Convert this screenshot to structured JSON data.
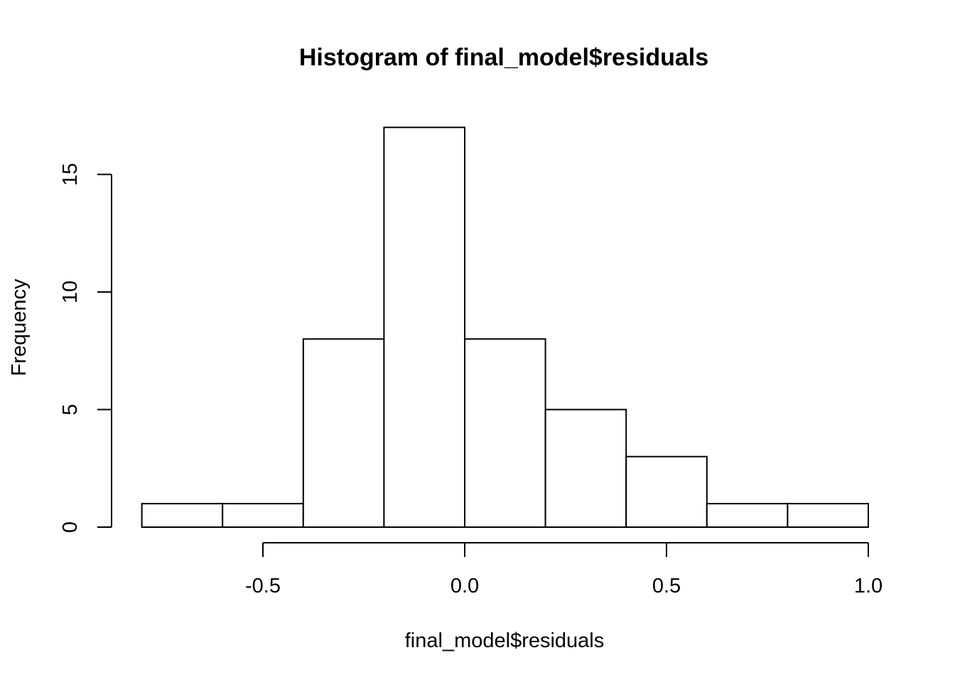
{
  "chart_data": {
    "type": "bar",
    "title": "Histogram of final_model$residuals",
    "xlabel": "final_model$residuals",
    "ylabel": "Frequency",
    "xlim": [
      -0.8,
      1.0
    ],
    "ylim": [
      0,
      17
    ],
    "bins": [
      {
        "x0": -0.8,
        "x1": -0.6,
        "count": 1
      },
      {
        "x0": -0.6,
        "x1": -0.4,
        "count": 1
      },
      {
        "x0": -0.4,
        "x1": -0.2,
        "count": 8
      },
      {
        "x0": -0.2,
        "x1": 0.0,
        "count": 17
      },
      {
        "x0": 0.0,
        "x1": 0.2,
        "count": 8
      },
      {
        "x0": 0.2,
        "x1": 0.4,
        "count": 5
      },
      {
        "x0": 0.4,
        "x1": 0.6,
        "count": 3
      },
      {
        "x0": 0.6,
        "x1": 0.8,
        "count": 1
      },
      {
        "x0": 0.8,
        "x1": 1.0,
        "count": 1
      }
    ],
    "x_ticks": [
      {
        "value": -0.5,
        "label": "-0.5"
      },
      {
        "value": 0.0,
        "label": "0.0"
      },
      {
        "value": 0.5,
        "label": "0.5"
      },
      {
        "value": 1.0,
        "label": "1.0"
      }
    ],
    "y_ticks": [
      {
        "value": 0,
        "label": "0"
      },
      {
        "value": 5,
        "label": "5"
      },
      {
        "value": 10,
        "label": "10"
      },
      {
        "value": 15,
        "label": "15"
      }
    ],
    "grid": false,
    "legend": "none",
    "bar_fill": "#ffffff",
    "bar_stroke": "#000000"
  }
}
